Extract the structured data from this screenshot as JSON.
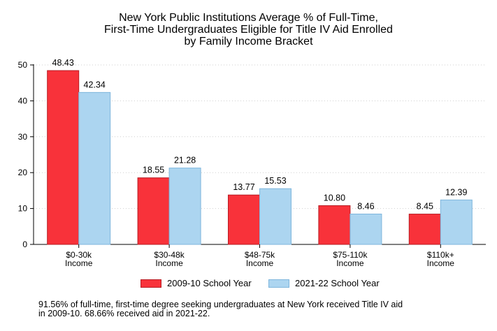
{
  "chart_data": {
    "type": "bar",
    "title_lines": [
      "New York Public Institutions Average % of Full-Time,",
      "First-Time Undergraduates Eligible for Title IV Aid Enrolled",
      "by Family Income Bracket"
    ],
    "categories": [
      [
        "$0-30k",
        "Income"
      ],
      [
        "$30-48k",
        "Income"
      ],
      [
        "$48-75k",
        "Income"
      ],
      [
        "$75-110k",
        "Income"
      ],
      [
        "$110k+",
        "Income"
      ]
    ],
    "series": [
      {
        "name": "2009-10 School Year",
        "color": "#f8323a",
        "stroke": "#b81d24",
        "values": [
          48.43,
          18.55,
          13.77,
          10.8,
          8.45
        ],
        "labels": [
          "48.43",
          "18.55",
          "13.77",
          "10.80",
          "8.45"
        ]
      },
      {
        "name": "2021-22 School Year",
        "color": "#acd5f0",
        "stroke": "#7fb6dd",
        "values": [
          42.34,
          21.28,
          15.53,
          8.46,
          12.39
        ],
        "labels": [
          "42.34",
          "21.28",
          "15.53",
          "8.46",
          "12.39"
        ]
      }
    ],
    "yticks": [
      "0",
      "10",
      "20",
      "30",
      "40",
      "50"
    ],
    "ylim": [
      0,
      50
    ],
    "grid": true,
    "legend_position": "bottom",
    "xlabel": "",
    "ylabel": ""
  },
  "footnote_lines": [
    "91.56% of full-time, first-time degree seeking undergraduates at New York received Title IV aid",
    "in 2009-10. 68.66% received aid in 2021-22."
  ]
}
